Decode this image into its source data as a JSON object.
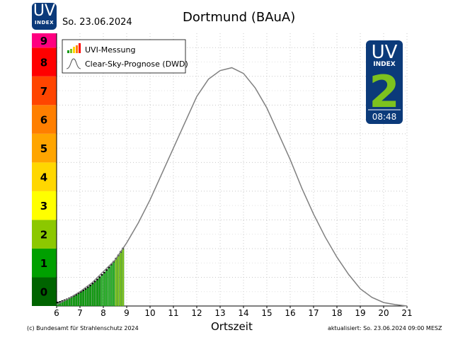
{
  "header": {
    "logo_big": "UV",
    "logo_small": "INDEX",
    "date": "So. 23.06.2024",
    "title": "Dortmund (BAuA)"
  },
  "badge": {
    "top": "UV",
    "sub": "INDEX",
    "value": "2",
    "time": "08:48",
    "color_bg": "#0b3a7a",
    "color_value": "#7dc21e"
  },
  "scale": {
    "levels": [
      {
        "label": "0",
        "color": "#006400"
      },
      {
        "label": "1",
        "color": "#00a000"
      },
      {
        "label": "2",
        "color": "#8cc800"
      },
      {
        "label": "3",
        "color": "#ffff00"
      },
      {
        "label": "4",
        "color": "#ffd700"
      },
      {
        "label": "5",
        "color": "#ffa500"
      },
      {
        "label": "6",
        "color": "#ff7f00"
      },
      {
        "label": "7",
        "color": "#ff4500"
      },
      {
        "label": "8",
        "color": "#ff0000"
      },
      {
        "label": "9",
        "color": "#ff0080"
      }
    ]
  },
  "legend": {
    "measurement": "UVI-Messung",
    "forecast": "Clear-Sky-Prognose (DWD)",
    "placement": "top-left"
  },
  "footer": {
    "copyright": "(c) Bundesamt für Strahlenschutz 2024",
    "xlabel": "Ortszeit",
    "updated": "aktualisiert: So. 23.06.2024  09:00  MESZ"
  },
  "chart_data": {
    "type": "bar",
    "xlabel": "Ortszeit",
    "ylabel": "",
    "xlim": [
      6,
      21
    ],
    "ylim": [
      0,
      9.5
    ],
    "grid": true,
    "x_ticks": [
      "6",
      "7",
      "8",
      "9",
      "10",
      "11",
      "12",
      "13",
      "14",
      "15",
      "16",
      "17",
      "18",
      "19",
      "20",
      "21"
    ],
    "series": [
      {
        "name": "UVI-Messung",
        "type": "bar",
        "x": [
          6.0,
          6.1,
          6.2,
          6.3,
          6.4,
          6.5,
          6.6,
          6.7,
          6.8,
          6.9,
          7.0,
          7.1,
          7.2,
          7.3,
          7.4,
          7.5,
          7.6,
          7.7,
          7.8,
          7.9,
          8.0,
          8.1,
          8.2,
          8.3,
          8.4,
          8.5,
          8.6,
          8.7,
          8.8
        ],
        "values": [
          0.1,
          0.12,
          0.15,
          0.18,
          0.21,
          0.25,
          0.29,
          0.33,
          0.37,
          0.42,
          0.47,
          0.52,
          0.57,
          0.63,
          0.69,
          0.76,
          0.83,
          0.9,
          0.98,
          1.06,
          1.14,
          1.23,
          1.32,
          1.42,
          1.52,
          1.63,
          1.74,
          1.86,
          1.98
        ]
      },
      {
        "name": "Clear-Sky-Prognose (DWD)",
        "type": "line",
        "x": [
          6,
          6.5,
          7,
          7.5,
          8,
          8.5,
          9,
          9.5,
          10,
          10.5,
          11,
          11.5,
          12,
          12.5,
          13,
          13.5,
          14,
          14.5,
          15,
          15.5,
          16,
          16.5,
          17,
          17.5,
          18,
          18.5,
          19,
          19.5,
          20,
          20.5,
          21
        ],
        "values": [
          0.05,
          0.25,
          0.5,
          0.8,
          1.2,
          1.6,
          2.2,
          2.9,
          3.7,
          4.6,
          5.5,
          6.4,
          7.3,
          7.9,
          8.2,
          8.3,
          8.1,
          7.6,
          6.9,
          6.0,
          5.1,
          4.1,
          3.2,
          2.4,
          1.7,
          1.1,
          0.6,
          0.3,
          0.12,
          0.05,
          0.0
        ]
      }
    ]
  }
}
